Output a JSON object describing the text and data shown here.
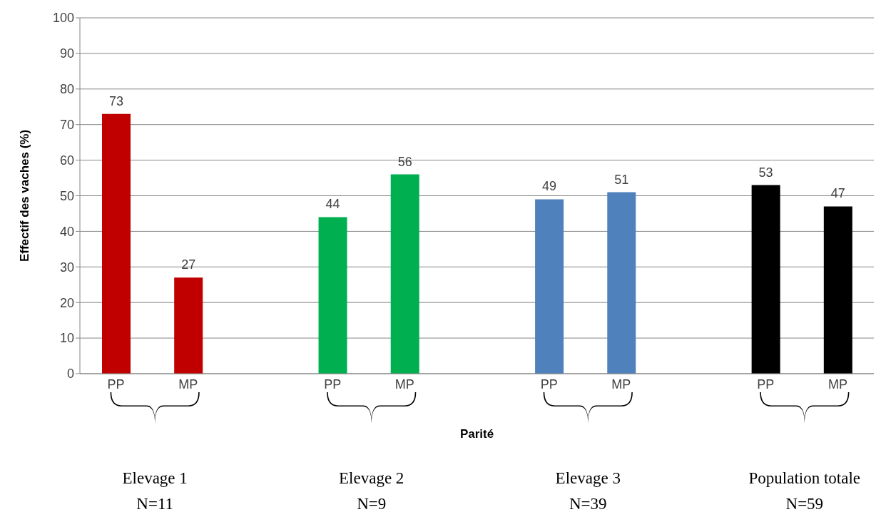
{
  "chart_data": {
    "type": "bar",
    "xlabel": "Parité",
    "ylabel": "Effectif des vaches (%)",
    "categories": [
      "PP",
      "MP",
      null,
      "PP",
      "MP",
      null,
      "PP",
      "MP",
      null,
      "PP",
      "MP"
    ],
    "values": [
      73,
      27,
      null,
      44,
      56,
      null,
      49,
      51,
      null,
      53,
      47
    ],
    "colors": [
      "#c00000",
      "#c00000",
      "#ffffff",
      "#00b050",
      "#00b050",
      "#ffffff",
      "#4f81bd",
      "#4f81bd",
      "#ffffff",
      "#000000",
      "#000000"
    ],
    "ylim": [
      0,
      100
    ],
    "yticks": [
      0,
      10,
      20,
      30,
      40,
      50,
      60,
      70,
      80,
      90,
      100
    ],
    "grid": "y",
    "data_labels": true,
    "annotations": [
      "Elevage 1",
      "N=11",
      "Elevage 2",
      "N=9",
      "Elevage 3",
      "N=39",
      "Population totale",
      "N=59"
    ]
  }
}
